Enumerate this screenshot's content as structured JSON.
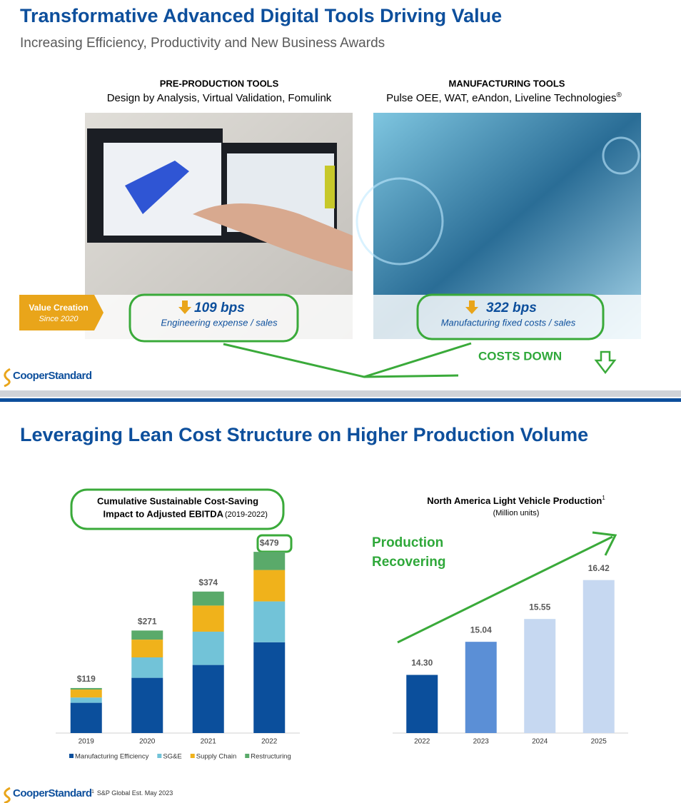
{
  "slide1": {
    "title": "Transformative Advanced Digital Tools Driving Value",
    "subtitle": "Increasing Efficiency, Productivity and New Business Awards",
    "panels": [
      {
        "heading": "PRE-PRODUCTION TOOLS",
        "tools": "Design by Analysis, Virtual Validation, Fomulink",
        "metric": "109 bps",
        "metric_label": "Engineering expense / sales"
      },
      {
        "heading": "MANUFACTURING TOOLS",
        "tools": "Pulse OEE, WAT, eAndon, Liveline Technologies",
        "tools_sup": "®",
        "metric": "322 bps",
        "metric_label": "Manufacturing fixed costs / sales"
      }
    ],
    "value_creation": "Value Creation",
    "since": "Since 2020",
    "annotation": "COSTS DOWN",
    "logo": "CooperStandard"
  },
  "slide2": {
    "title": "Leveraging Lean Cost Structure on Higher Production Volume",
    "annotation": [
      "Production",
      "Recovering"
    ],
    "footnote_mark": "1",
    "footnote": "S&P Global Est. May 2023",
    "logo": "CooperStandard"
  },
  "chart_data": [
    {
      "type": "stacked_bar",
      "title_lines": [
        "Cumulative Sustainable Cost-Saving",
        "Impact to Adjusted EBITDA"
      ],
      "subtitle": "(2019-2022)",
      "categories": [
        "2019",
        "2020",
        "2021",
        "2022"
      ],
      "ylim": [
        0,
        500
      ],
      "series": [
        {
          "name": "Manufacturing Efficiency",
          "color": "#0b4f9c",
          "values": [
            80,
            146,
            180,
            240
          ]
        },
        {
          "name": "SG&E",
          "color": "#72c3d8",
          "values": [
            14,
            54,
            88,
            108
          ]
        },
        {
          "name": "Supply Chain",
          "color": "#f0b21b",
          "values": [
            21,
            47,
            69,
            83
          ]
        },
        {
          "name": "Restructuring",
          "color": "#5aaa6a",
          "values": [
            4,
            24,
            37,
            48
          ]
        }
      ],
      "totals": [
        119,
        271,
        374,
        479
      ],
      "total_labels": [
        "$119",
        "$271",
        "$374",
        "$479"
      ],
      "legend": "bottom"
    },
    {
      "type": "bar",
      "title": "North America Light Vehicle Production",
      "title_sup": "1",
      "subtitle": "(Million units)",
      "categories": [
        "2022",
        "2023",
        "2024",
        "2025"
      ],
      "values": [
        14.3,
        15.04,
        15.55,
        16.42
      ],
      "value_labels": [
        "14.30",
        "15.04",
        "15.55",
        "16.42"
      ],
      "colors": [
        "#0b4f9c",
        "#5b8fd6",
        "#c6d8f1",
        "#c6d8f1"
      ],
      "ylim": [
        13,
        17.5
      ]
    }
  ]
}
